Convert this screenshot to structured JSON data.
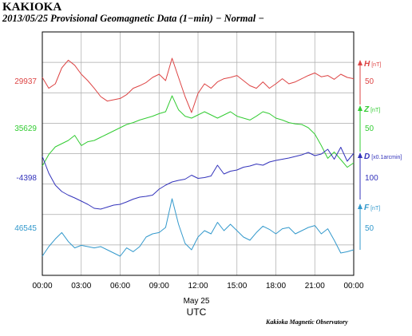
{
  "header": {
    "station": "KAKIOKA",
    "subtitle": "2013/05/25  Provisional Geomagnetic Data (1−min)  − Normal −"
  },
  "footer": {
    "credit": "Kakioka Magnetic Observatory"
  },
  "chart_data": {
    "type": "line",
    "x_ticks": [
      "00:00",
      "03:00",
      "06:00",
      "09:00",
      "12:00",
      "15:00",
      "18:00",
      "21:00",
      "00:00"
    ],
    "x_date_label": "May 25",
    "x_label": "UTC",
    "grid": true,
    "series": [
      {
        "name": "H",
        "unit": "[nT]",
        "base": "29937",
        "scale": "50",
        "color": "#dd4444",
        "hours": [
          0,
          0.5,
          1,
          1.5,
          2,
          2.5,
          3,
          3.5,
          4,
          4.5,
          5,
          5.5,
          6,
          6.5,
          7,
          7.5,
          8,
          8.5,
          9,
          9.5,
          10,
          10.5,
          11,
          11.5,
          12,
          12.5,
          13,
          13.5,
          14,
          14.5,
          15,
          15.5,
          16,
          16.5,
          17,
          17.5,
          18,
          18.5,
          19,
          19.5,
          20,
          20.5,
          21,
          21.5,
          22,
          22.5,
          23,
          23.5,
          24
        ],
        "values": [
          5,
          -12,
          -5,
          20,
          32,
          24,
          10,
          0,
          -12,
          -25,
          -32,
          -30,
          -28,
          -22,
          -12,
          -8,
          -3,
          5,
          10,
          0,
          35,
          5,
          -25,
          -50,
          -20,
          -5,
          -12,
          -2,
          3,
          5,
          8,
          0,
          -8,
          -12,
          -2,
          -12,
          -5,
          3,
          -5,
          -2,
          3,
          8,
          12,
          6,
          8,
          2,
          10,
          5,
          3
        ]
      },
      {
        "name": "Z",
        "unit": "[nT]",
        "base": "35629",
        "scale": "50",
        "color": "#33cc33",
        "hours": [
          0,
          0.5,
          1,
          1.5,
          2,
          2.5,
          3,
          3.5,
          4,
          4.5,
          5,
          5.5,
          6,
          6.5,
          7,
          7.5,
          8,
          8.5,
          9,
          9.5,
          10,
          10.5,
          11,
          11.5,
          12,
          12.5,
          13,
          13.5,
          14,
          14.5,
          15,
          15.5,
          16,
          16.5,
          17,
          17.5,
          18,
          18.5,
          19,
          19.5,
          20,
          20.5,
          21,
          21.5,
          22,
          22.5,
          23,
          23.5,
          24
        ],
        "values": [
          -60,
          -42,
          -30,
          -25,
          -20,
          -12,
          -28,
          -22,
          -20,
          -15,
          -10,
          -5,
          0,
          5,
          8,
          12,
          15,
          18,
          22,
          25,
          50,
          28,
          18,
          15,
          20,
          25,
          20,
          15,
          20,
          25,
          18,
          15,
          12,
          18,
          25,
          22,
          15,
          12,
          8,
          6,
          5,
          0,
          -10,
          -28,
          -48,
          -38,
          -50,
          -62,
          -55
        ]
      },
      {
        "name": "D",
        "unit": "[x0.1arcmin]",
        "base": "-4398",
        "scale": "100",
        "color": "#3333bb",
        "hours": [
          0,
          0.5,
          1,
          1.5,
          2,
          2.5,
          3,
          3.5,
          4,
          4.5,
          5,
          5.5,
          6,
          6.5,
          7,
          7.5,
          8,
          8.5,
          9,
          9.5,
          10,
          10.5,
          11,
          11.5,
          12,
          12.5,
          13,
          13.5,
          14,
          14.5,
          15,
          15.5,
          16,
          16.5,
          17,
          17.5,
          18,
          18.5,
          19,
          19.5,
          20,
          20.5,
          21,
          21.5,
          22,
          22.5,
          23,
          23.5,
          24
        ],
        "values": [
          52,
          10,
          -20,
          -36,
          -45,
          -52,
          -60,
          -68,
          -78,
          -80,
          -75,
          -70,
          -68,
          -62,
          -55,
          -50,
          -48,
          -45,
          -30,
          -20,
          -12,
          -8,
          -5,
          5,
          -3,
          -1,
          3,
          30,
          8,
          15,
          18,
          25,
          28,
          33,
          30,
          38,
          42,
          45,
          48,
          52,
          56,
          62,
          54,
          58,
          70,
          45,
          75,
          40,
          60
        ]
      },
      {
        "name": "F",
        "unit": "[nT]",
        "base": "46545",
        "scale": "50",
        "color": "#3399cc",
        "hours": [
          0,
          0.5,
          1,
          1.5,
          2,
          2.5,
          3,
          3.5,
          4,
          4.5,
          5,
          5.5,
          6,
          6.5,
          7,
          7.5,
          8,
          8.5,
          9,
          9.5,
          10,
          10.5,
          11,
          11.5,
          12,
          12.5,
          13,
          13.5,
          14,
          14.5,
          15,
          15.5,
          16,
          16.5,
          17,
          17.5,
          18,
          18.5,
          19,
          19.5,
          20,
          20.5,
          21,
          21.5,
          22,
          22.5,
          23,
          23.5,
          24
        ],
        "values": [
          -45,
          -30,
          -18,
          -8,
          -22,
          -32,
          -28,
          -30,
          -32,
          -30,
          -35,
          -40,
          -45,
          -32,
          -38,
          -30,
          -15,
          -10,
          -8,
          0,
          45,
          5,
          -25,
          -35,
          -15,
          -5,
          -10,
          8,
          -5,
          5,
          -5,
          -15,
          -20,
          -8,
          2,
          -3,
          -10,
          -2,
          0,
          -10,
          -5,
          0,
          3,
          -10,
          -2,
          -20,
          -40,
          -38,
          -35
        ]
      }
    ]
  }
}
